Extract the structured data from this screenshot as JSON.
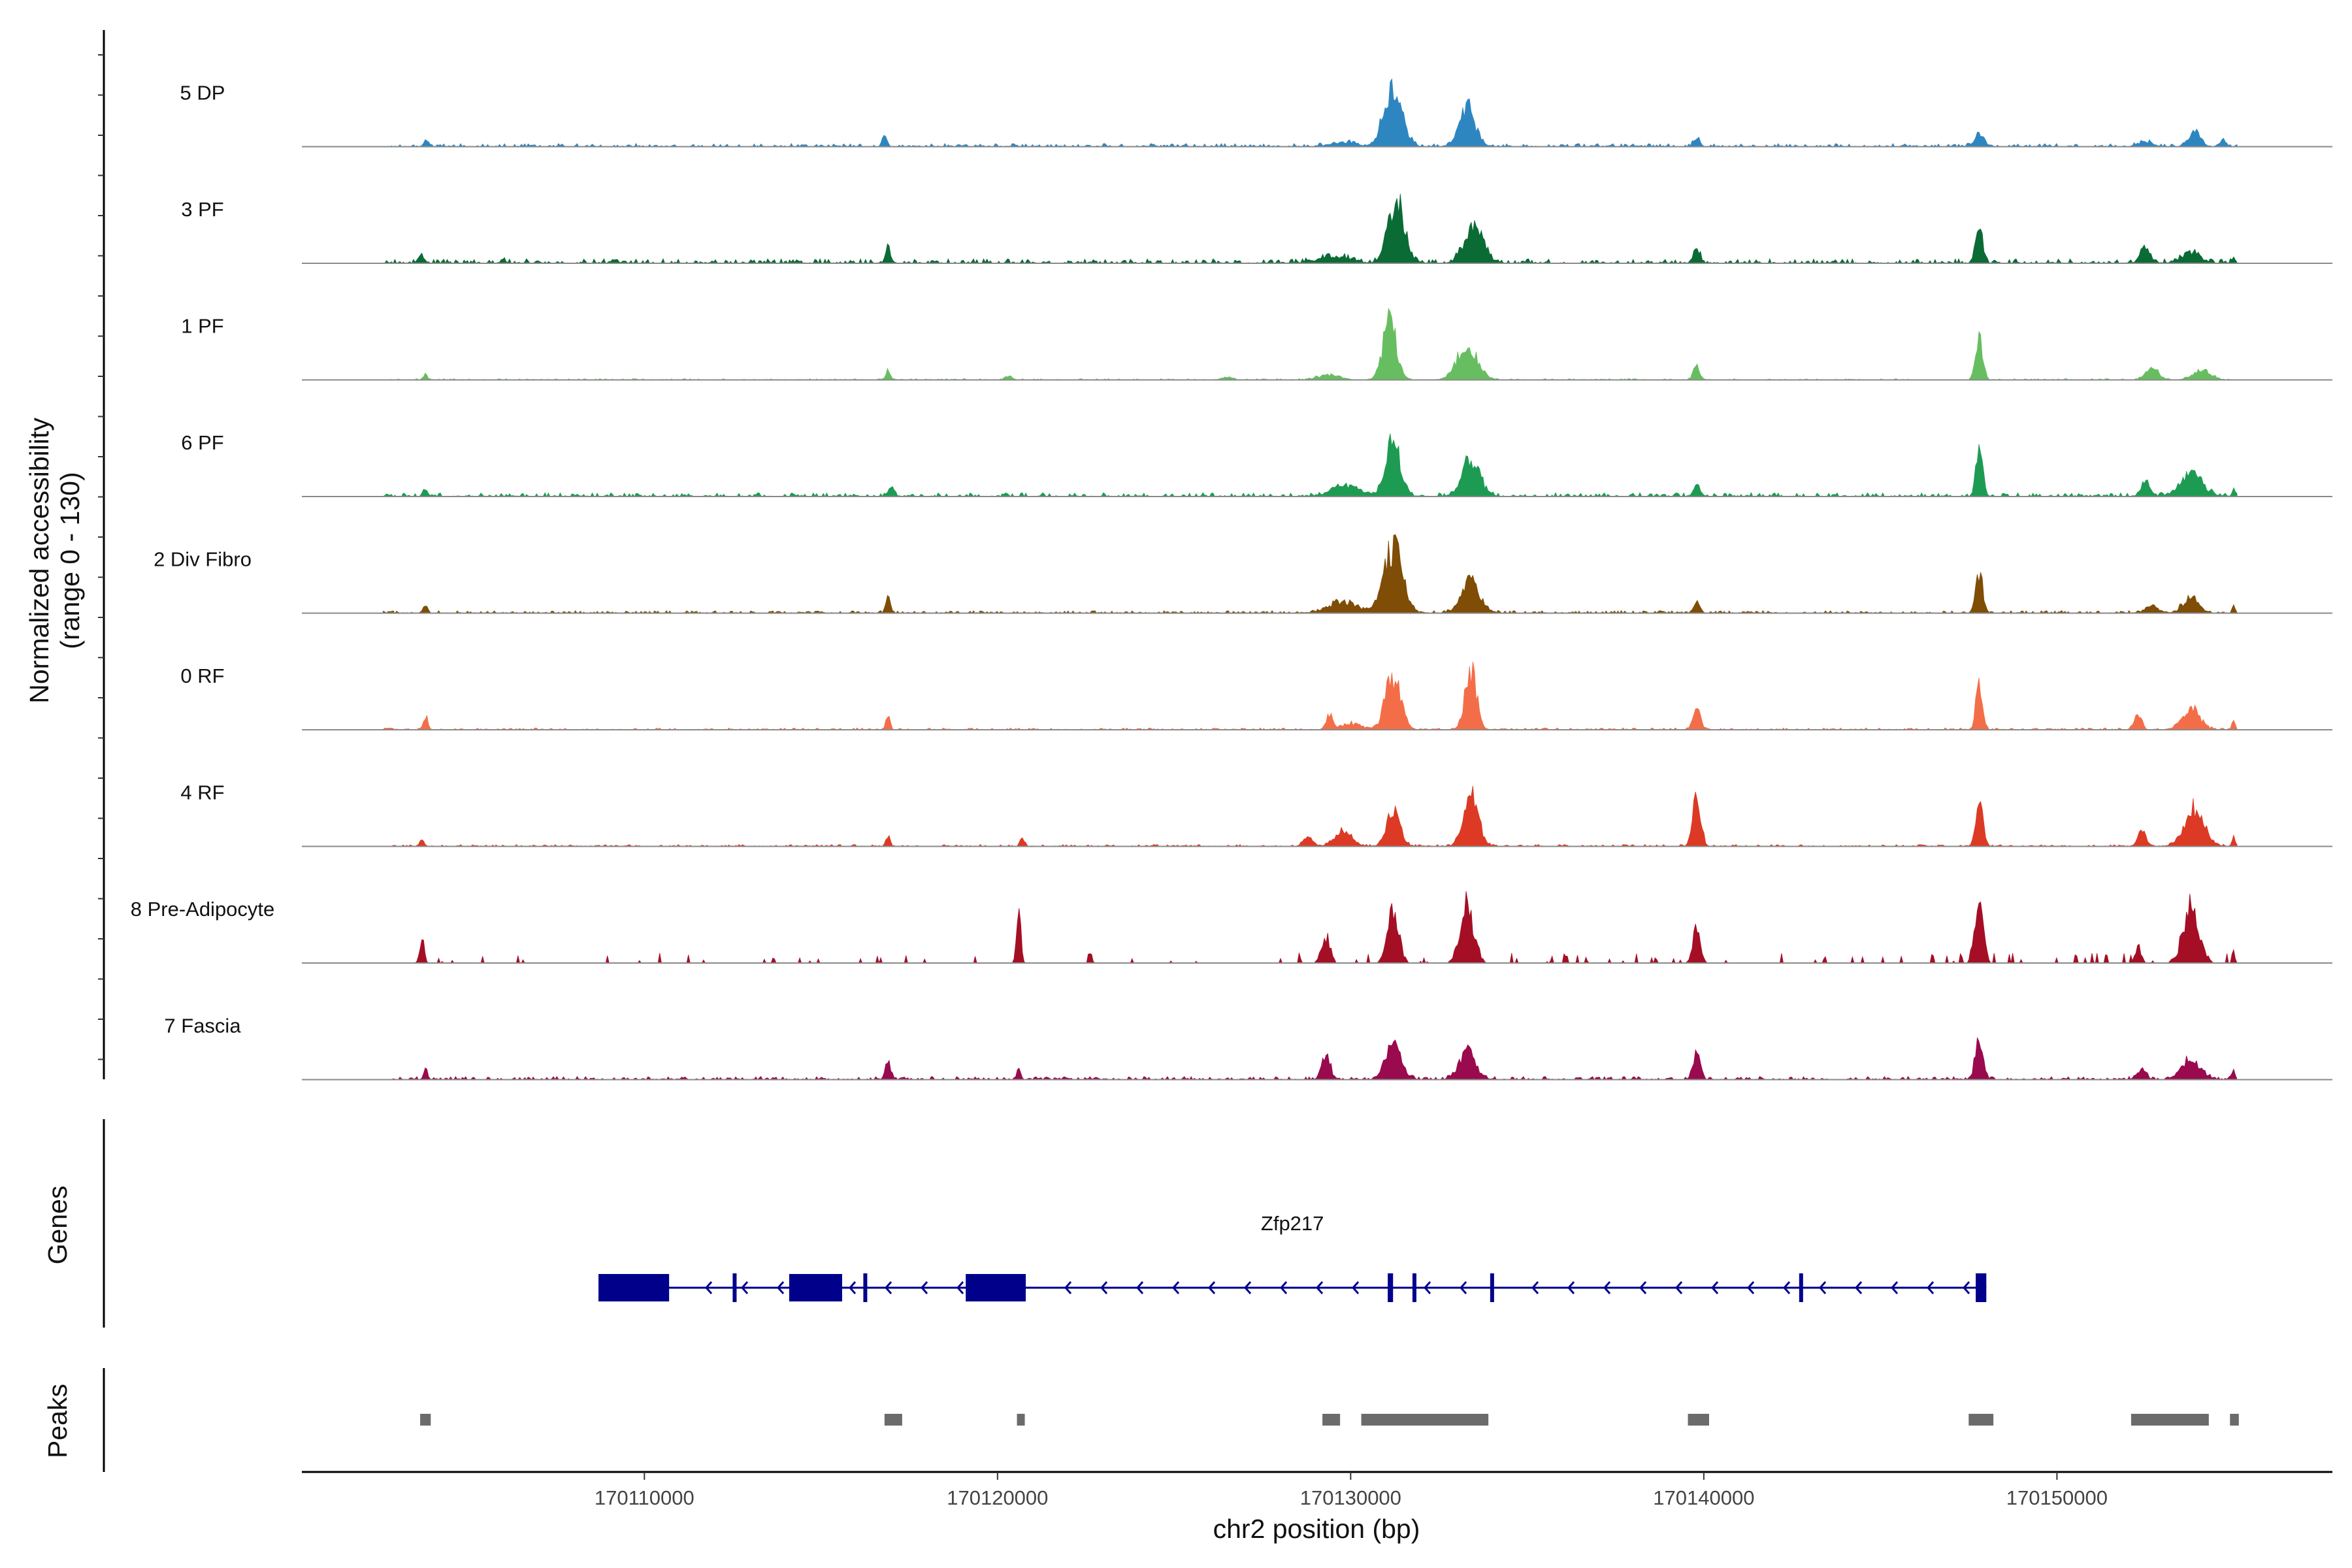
{
  "chart_data": {
    "type": "area",
    "title": "",
    "xlabel": "chr2 position (bp)",
    "ylabel_line1": "Normalized accessibility",
    "ylabel_line2": "(range 0 - 130)",
    "ylim": [
      0,
      130
    ],
    "xlim": [
      170100300,
      170157800
    ],
    "x_ticks": [
      170110000,
      170120000,
      170130000,
      170140000,
      170150000
    ],
    "x_tick_labels": [
      "170110000",
      "170120000",
      "170130000",
      "170140000",
      "170150000"
    ],
    "coverage_start": 170102600,
    "coverage_end": 170155100,
    "genes_label": "Genes",
    "peaks_label": "Peaks",
    "series": [
      {
        "name": "5 DP",
        "color": "#2E86C1",
        "noise": 5,
        "sparse": 0,
        "peaks": [
          [
            170103800,
            13,
            60
          ],
          [
            170116800,
            28,
            60
          ],
          [
            170129800,
            8,
            350
          ],
          [
            170131200,
            130,
            250
          ],
          [
            170133300,
            80,
            220
          ],
          [
            170139800,
            16,
            90
          ],
          [
            170147800,
            25,
            130
          ],
          [
            170152500,
            10,
            200
          ],
          [
            170153900,
            28,
            160
          ],
          [
            170154700,
            14,
            80
          ]
        ]
      },
      {
        "name": "3 PF",
        "color": "#0B6B35",
        "noise": 7,
        "sparse": 0,
        "peaks": [
          [
            170103700,
            16,
            70
          ],
          [
            170106000,
            8,
            60
          ],
          [
            170116900,
            30,
            70
          ],
          [
            170129500,
            12,
            450
          ],
          [
            170131300,
            120,
            230
          ],
          [
            170133500,
            75,
            260
          ],
          [
            170139800,
            32,
            90
          ],
          [
            170147800,
            70,
            100
          ],
          [
            170152500,
            35,
            130
          ],
          [
            170153800,
            22,
            250
          ],
          [
            170155000,
            12,
            40
          ]
        ]
      },
      {
        "name": "1 PF",
        "color": "#67BE60",
        "noise": 2,
        "sparse": 0,
        "peaks": [
          [
            170103800,
            14,
            50
          ],
          [
            170116900,
            22,
            60
          ],
          [
            170120300,
            8,
            100
          ],
          [
            170126500,
            6,
            150
          ],
          [
            170129400,
            10,
            300
          ],
          [
            170131100,
            115,
            190
          ],
          [
            170133300,
            70,
            280
          ],
          [
            170139800,
            28,
            90
          ],
          [
            170147800,
            78,
            100
          ],
          [
            170152700,
            22,
            180
          ],
          [
            170154100,
            18,
            260
          ]
        ]
      },
      {
        "name": "6 PF",
        "color": "#1E9B53",
        "noise": 6,
        "sparse": 0,
        "peaks": [
          [
            170103800,
            14,
            60
          ],
          [
            170117000,
            18,
            70
          ],
          [
            170129900,
            22,
            400
          ],
          [
            170131200,
            105,
            210
          ],
          [
            170133400,
            75,
            250
          ],
          [
            170139800,
            25,
            90
          ],
          [
            170147800,
            105,
            90
          ],
          [
            170152500,
            28,
            130
          ],
          [
            170153800,
            42,
            320
          ],
          [
            170155000,
            18,
            40
          ]
        ]
      },
      {
        "name": "2 Div Fibro",
        "color": "#7F4D06",
        "noise": 4,
        "sparse": 0,
        "peaks": [
          [
            170103800,
            16,
            60
          ],
          [
            170116900,
            38,
            60
          ],
          [
            170129800,
            22,
            400
          ],
          [
            170131200,
            130,
            260
          ],
          [
            170133400,
            62,
            260
          ],
          [
            170139800,
            20,
            90
          ],
          [
            170147800,
            78,
            100
          ],
          [
            170152700,
            12,
            200
          ],
          [
            170153800,
            32,
            220
          ],
          [
            170155000,
            14,
            40
          ]
        ]
      },
      {
        "name": "0 RF",
        "color": "#F36E48",
        "noise": 3,
        "sparse": 0,
        "peaks": [
          [
            170103800,
            26,
            60
          ],
          [
            170116900,
            28,
            60
          ],
          [
            170129400,
            30,
            90
          ],
          [
            170130000,
            12,
            300
          ],
          [
            170131200,
            108,
            210
          ],
          [
            170133400,
            120,
            160
          ],
          [
            170139800,
            40,
            100
          ],
          [
            170147800,
            98,
            90
          ],
          [
            170152300,
            35,
            100
          ],
          [
            170153800,
            40,
            250
          ],
          [
            170155000,
            22,
            40
          ]
        ]
      },
      {
        "name": "4 RF",
        "color": "#DC3A24",
        "noise": 3,
        "sparse": 0,
        "peaks": [
          [
            170103700,
            14,
            60
          ],
          [
            170116900,
            20,
            60
          ],
          [
            170120700,
            14,
            60
          ],
          [
            170128800,
            20,
            120
          ],
          [
            170129800,
            30,
            250
          ],
          [
            170131200,
            68,
            190
          ],
          [
            170133400,
            110,
            200
          ],
          [
            170139800,
            108,
            110
          ],
          [
            170147800,
            103,
            100
          ],
          [
            170152400,
            38,
            100
          ],
          [
            170153900,
            75,
            270
          ],
          [
            170155000,
            20,
            40
          ]
        ]
      },
      {
        "name": "8 Pre-Adipocyte",
        "color": "#A50F25",
        "noise": 0,
        "sparse": 16,
        "peaks": [
          [
            170103700,
            55,
            60
          ],
          [
            170120600,
            98,
            60
          ],
          [
            170129300,
            55,
            120
          ],
          [
            170131200,
            105,
            160
          ],
          [
            170133300,
            115,
            190
          ],
          [
            170139800,
            65,
            110
          ],
          [
            170147800,
            112,
            120
          ],
          [
            170152300,
            30,
            90
          ],
          [
            170153800,
            110,
            220
          ],
          [
            170155000,
            28,
            40
          ]
        ]
      },
      {
        "name": "7 Fascia",
        "color": "#990A4E",
        "noise": 5,
        "sparse": 0,
        "peaks": [
          [
            170103800,
            18,
            60
          ],
          [
            170116900,
            45,
            70
          ],
          [
            170120600,
            20,
            60
          ],
          [
            170129300,
            50,
            120
          ],
          [
            170131200,
            70,
            210
          ],
          [
            170133300,
            55,
            220
          ],
          [
            170139800,
            52,
            100
          ],
          [
            170147800,
            85,
            110
          ],
          [
            170152400,
            20,
            120
          ],
          [
            170153800,
            40,
            260
          ],
          [
            170155000,
            18,
            40
          ]
        ]
      }
    ],
    "gene": {
      "name": "Zfp217",
      "color": "#00008B",
      "strand": "-",
      "start": 170108700,
      "end": 170148000,
      "exons": [
        [
          170108700,
          170110700
        ],
        [
          170112500,
          170112600
        ],
        [
          170114100,
          170115600
        ],
        [
          170116200,
          170116300
        ],
        [
          170119100,
          170120800
        ],
        [
          170131050,
          170131200
        ],
        [
          170131750,
          170131850
        ],
        [
          170133950,
          170134000
        ],
        [
          170142700,
          170142750
        ],
        [
          170147700,
          170148000
        ]
      ]
    },
    "peaks": [
      [
        170103650,
        170103950
      ],
      [
        170116800,
        170117300
      ],
      [
        170120550,
        170120750
      ],
      [
        170129200,
        170129700
      ],
      [
        170130300,
        170133900
      ],
      [
        170139550,
        170140150
      ],
      [
        170147500,
        170148200
      ],
      [
        170152100,
        170154300
      ],
      [
        170154900,
        170155150
      ]
    ]
  }
}
